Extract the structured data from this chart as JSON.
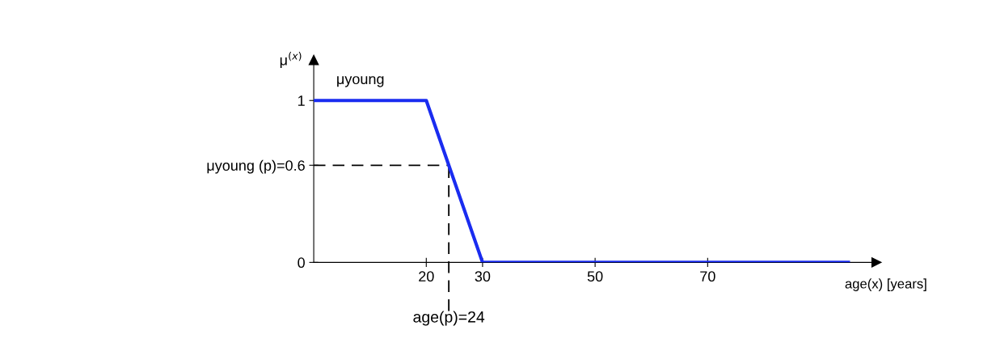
{
  "chart_data": {
    "type": "line",
    "ylabel": "μ$^{(x)}$",
    "xlabel": "age(x) [years]",
    "annotations": [
      "μyoung"
    ],
    "series": [
      {
        "x": [
          0,
          20,
          30,
          95
        ],
        "values": [
          1,
          1,
          0,
          0
        ],
        "color": "#1a2cf0"
      }
    ],
    "xlim": [
      0,
      100
    ],
    "ylim": [
      0,
      1.25
    ],
    "xticks": [
      20,
      30,
      50,
      70
    ],
    "yticks": [
      0,
      {
        "value": 0.6,
        "label": "μyoung (p)=0.6"
      },
      1
    ],
    "ref_lines": [
      {
        "axis": "y",
        "value": 0.6,
        "line_style": "dashed",
        "color": "#000000"
      },
      {
        "axis": "x",
        "value": 24,
        "label": "age(p)=24",
        "line_style": "dashed",
        "color": "#000000"
      }
    ],
    "grid": false,
    "marker": "none",
    "line_style": "solid"
  }
}
